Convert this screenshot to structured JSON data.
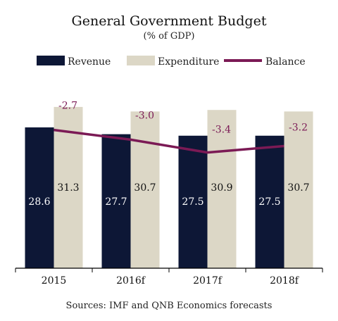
{
  "chart_data": {
    "type": "bar",
    "title": "General Government Budget",
    "subtitle": "(% of GDP)",
    "categories": [
      "2015",
      "2016f",
      "2017f",
      "2018f"
    ],
    "series": [
      {
        "name": "Revenue",
        "type": "bar",
        "color": "#0d1736",
        "label_color": "#ffffff",
        "values": [
          28.6,
          27.7,
          27.5,
          27.5
        ]
      },
      {
        "name": "Expenditure",
        "type": "bar",
        "color": "#dcd7c6",
        "label_color": "#111111",
        "values": [
          31.3,
          30.7,
          30.9,
          30.7
        ]
      },
      {
        "name": "Balance",
        "type": "line",
        "color": "#7b1a55",
        "values": [
          -2.7,
          -3.0,
          -3.4,
          -3.2
        ]
      }
    ],
    "bar_axis_range": [
      10,
      32.5
    ],
    "balance_axis_range": [
      -7,
      -1.7
    ],
    "grid": false,
    "legend_position": "top",
    "source": "Sources: IMF and QNB Economics forecasts"
  }
}
